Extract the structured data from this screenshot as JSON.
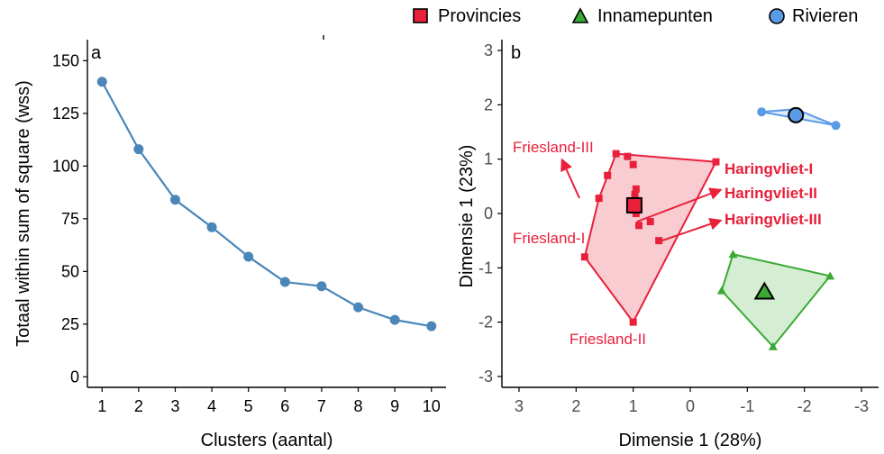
{
  "colors": {
    "provinces": "#e8203a",
    "provinces_fill": "#f5b6bd",
    "inname": "#3aaa35",
    "inname_fill": "#c3e6c0",
    "rivers": "#5a9be8",
    "rivers_fill": "#cfe2f8",
    "panel_a_line": "#4a86b8",
    "axis": "#000000",
    "tick_text": "#4d4d4d"
  },
  "legend": {
    "items": [
      {
        "label": "Provincies",
        "shape": "square-icon",
        "color": "#e8203a"
      },
      {
        "label": "Innamepunten",
        "shape": "triangle-icon",
        "color": "#3aaa35"
      },
      {
        "label": "Rivieren",
        "shape": "circle-icon",
        "color": "#5a9be8"
      }
    ]
  },
  "chart_data": [
    {
      "type": "line",
      "panel_label": "a",
      "xlabel": "Clusters (aantal)",
      "ylabel": "Totaal within sum of square (wss)",
      "x": [
        1,
        2,
        3,
        4,
        5,
        6,
        7,
        8,
        9,
        10
      ],
      "values": [
        140,
        108,
        84,
        71,
        57,
        45,
        43,
        33,
        27,
        24
      ],
      "xlim": [
        0.6,
        10.4
      ],
      "ylim": [
        -5,
        160
      ],
      "x_ticks": [
        "1",
        "2",
        "3",
        "4",
        "5",
        "6",
        "7",
        "8",
        "9",
        "10"
      ],
      "y_ticks": [
        "0",
        "25",
        "50",
        "75",
        "100",
        "125",
        "150"
      ],
      "grid": false
    },
    {
      "type": "scatter",
      "panel_label": "b",
      "xlabel": "Dimensie 1 (28%)",
      "ylabel": "Dimensie 1 (23%)",
      "xlim": [
        3.3,
        -3.3
      ],
      "ylim": [
        -3.2,
        3.2
      ],
      "x_ticks": [
        "3",
        "2",
        "1",
        "0",
        "-1",
        "-2",
        "-3"
      ],
      "y_ticks": [
        "-3",
        "-2",
        "-1",
        "0",
        "1",
        "2",
        "3"
      ],
      "x_reversed": true,
      "grid": false,
      "series": [
        {
          "name": "Provincies",
          "points": [
            [
              1.3,
              1.1
            ],
            [
              1.1,
              1.05
            ],
            [
              1.0,
              0.9
            ],
            [
              1.45,
              0.7
            ],
            [
              1.6,
              0.28
            ],
            [
              0.95,
              0.45
            ],
            [
              0.97,
              0.35
            ],
            [
              1.0,
              0.2
            ],
            [
              0.95,
              0.0
            ],
            [
              0.7,
              -0.15
            ],
            [
              0.9,
              -0.22
            ],
            [
              0.55,
              -0.5
            ],
            [
              -0.45,
              0.95
            ],
            [
              1.85,
              -0.8
            ],
            [
              1.0,
              -2.0
            ]
          ],
          "hull": [
            [
              1.3,
              1.1
            ],
            [
              -0.45,
              0.95
            ],
            [
              1.0,
              -2.0
            ],
            [
              1.85,
              -0.8
            ],
            [
              1.6,
              0.28
            ]
          ],
          "centroid": [
            0.98,
            0.15
          ]
        },
        {
          "name": "Innamepunten",
          "points": [
            [
              -0.75,
              -0.75
            ],
            [
              -2.45,
              -1.15
            ],
            [
              -0.55,
              -1.42
            ],
            [
              -1.45,
              -2.45
            ],
            [
              -1.3,
              -1.45
            ]
          ],
          "hull": [
            [
              -0.75,
              -0.75
            ],
            [
              -2.45,
              -1.15
            ],
            [
              -1.45,
              -2.45
            ],
            [
              -0.55,
              -1.42
            ]
          ],
          "centroid": [
            -1.3,
            -1.45
          ]
        },
        {
          "name": "Rivieren",
          "points": [
            [
              -1.25,
              1.87
            ],
            [
              -1.85,
              1.82
            ],
            [
              -2.55,
              1.62
            ]
          ],
          "hull": [
            [
              -1.25,
              1.87
            ],
            [
              -1.85,
              1.92
            ],
            [
              -2.55,
              1.62
            ]
          ],
          "centroid": [
            -1.85,
            1.81
          ]
        }
      ],
      "annotations": [
        {
          "text": "Friesland-III",
          "target": [
            2.25,
            1.1
          ]
        },
        {
          "text": "Friesland-I",
          "target": null
        },
        {
          "text": "Friesland-II",
          "target": null
        },
        {
          "text": "Haringvliet-I",
          "target": null
        },
        {
          "text": "Haringvliet-II",
          "target": [
            -0.55,
            0.45
          ]
        },
        {
          "text": "Haringvliet-III",
          "target": [
            -0.55,
            -0.1
          ]
        }
      ]
    }
  ]
}
